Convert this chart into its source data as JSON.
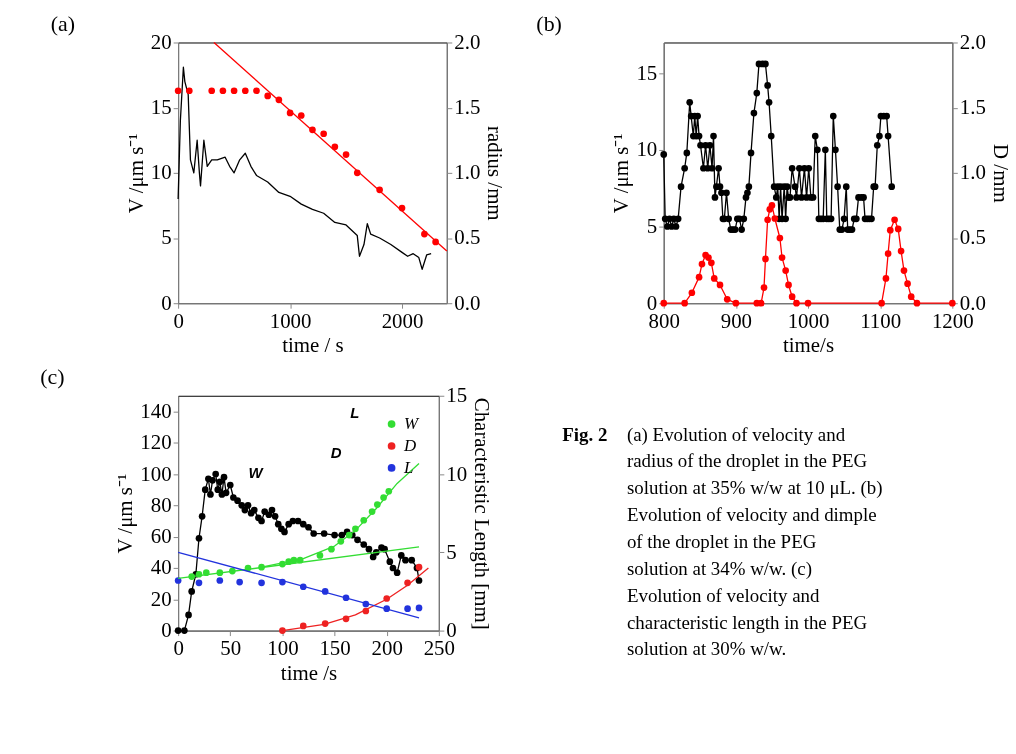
{
  "chart_data": [
    {
      "type": "line",
      "title": "(a)",
      "xlabel": "time / s",
      "ylabel": "V /μm s⁻¹",
      "y2label": "radius /mm",
      "xlim": [
        0,
        2400
      ],
      "xticks": [
        0,
        1000,
        2000
      ],
      "ylim": [
        0,
        20
      ],
      "yticks": [
        0,
        5,
        10,
        15,
        20
      ],
      "y2lim": [
        0,
        2.0
      ],
      "y2ticks": [
        {
          "value": 0,
          "label": "0.0"
        },
        {
          "value": 0.5,
          "label": "0.5"
        },
        {
          "value": 1,
          "label": "1.0"
        },
        {
          "value": 1.5,
          "label": "1.5"
        },
        {
          "value": 2,
          "label": "2.0"
        }
      ],
      "grid": false,
      "legend": false,
      "series": [
        {
          "type": "line",
          "color": "#000000",
          "x": [
            0,
            20,
            47,
            60,
            90,
            110,
            140,
            170,
            190,
            200,
            230,
            260,
            300,
            350,
            420,
            460,
            500,
            550,
            600,
            650,
            700,
            800,
            900,
            1000,
            1100,
            1200,
            1300,
            1400,
            1500,
            1600,
            1620,
            1660,
            1690,
            1720,
            1800,
            1900,
            2000,
            2050,
            2100,
            2150,
            2180,
            2220,
            2260
          ],
          "values": [
            8,
            14,
            18.1,
            17,
            16,
            11,
            10,
            12.5,
            10,
            9,
            12.5,
            10.5,
            11,
            11,
            11.2,
            10.5,
            10,
            11,
            11.5,
            10.5,
            9.8,
            9.3,
            8.5,
            8.2,
            7.6,
            7.2,
            6.9,
            6.2,
            6,
            5.2,
            3.6,
            4.5,
            6.1,
            5.3,
            5,
            4.5,
            3.9,
            3.6,
            3.8,
            3.5,
            2.6,
            3.7,
            3.8
          ]
        },
        {
          "type": "scatter",
          "axis": "y2",
          "marker": "circle",
          "color": "#ff0000",
          "x": [
            0,
            100,
            300,
            400,
            500,
            600,
            700,
            800,
            900,
            1000,
            1100,
            1200,
            1300,
            1400,
            1500,
            1600,
            1800,
            2000,
            2200,
            2300
          ],
          "values": [
            1.63,
            1.63,
            1.63,
            1.63,
            1.63,
            1.63,
            1.63,
            1.59,
            1.56,
            1.46,
            1.44,
            1.33,
            1.3,
            1.2,
            1.14,
            1,
            0.87,
            0.73,
            0.53,
            0.47
          ]
        },
        {
          "type": "line",
          "axis": "y2",
          "color": "#ff0000",
          "x": [
            320,
            2400
          ],
          "values": [
            2.0,
            0.4
          ]
        }
      ]
    },
    {
      "type": "line",
      "title": "(b)",
      "xlabel": "time/s",
      "ylabel": "V /μm s⁻¹",
      "y2label": "D /mm",
      "xlim": [
        800,
        1200
      ],
      "xticks": [
        800,
        900,
        1000,
        1100,
        1200
      ],
      "ylim": [
        0,
        17
      ],
      "yticks": [
        0,
        5,
        10,
        15
      ],
      "y2lim": [
        0,
        2.0
      ],
      "y2ticks": [
        {
          "value": 0,
          "label": "0.0"
        },
        {
          "value": 0.5,
          "label": "0.5"
        },
        {
          "value": 1,
          "label": "1.0"
        },
        {
          "value": 1.5,
          "label": "1.5"
        },
        {
          "value": 2,
          "label": "2.0"
        }
      ],
      "grid": false,
      "legend": false,
      "series": [
        {
          "type": "line",
          "marker": "circle",
          "color": "#000000",
          "x": [
            800,
            802,
            805,
            808,
            811,
            814,
            817,
            820,
            824,
            829,
            832,
            836,
            838,
            841,
            843,
            845,
            847,
            849,
            851,
            855,
            858,
            861,
            864,
            867,
            869,
            871,
            873,
            876,
            878,
            880,
            882,
            884,
            887,
            890,
            893,
            896,
            899,
            902,
            905,
            908,
            911,
            914,
            916,
            918,
            921,
            925,
            929,
            932,
            937,
            941,
            944,
            946,
            949,
            953,
            956,
            958,
            960,
            962,
            964,
            967,
            969,
            971,
            973,
            975,
            978,
            982,
            984,
            988,
            991,
            995,
            998,
            1001,
            1004,
            1007,
            1010,
            1013,
            1015,
            1018,
            1021,
            1024,
            1026,
            1029,
            1032,
            1035,
            1038,
            1041,
            1044,
            1047,
            1050,
            1053,
            1055,
            1058,
            1061,
            1064,
            1067,
            1070,
            1074,
            1077,
            1079,
            1082,
            1085,
            1088,
            1091,
            1093,
            1096,
            1099,
            1101,
            1105,
            1109,
            1111,
            1116
          ],
          "values": [
            9.7,
            5.5,
            5.0,
            5.5,
            5.0,
            5.5,
            5.0,
            5.5,
            7.6,
            8.8,
            9.8,
            13.1,
            12.2,
            10.9,
            12.2,
            10.9,
            12.2,
            10.9,
            10.3,
            8.8,
            10.3,
            8.8,
            10.3,
            8.8,
            10.9,
            6.9,
            7.6,
            8.8,
            7.6,
            7.2,
            5.5,
            5.5,
            7.2,
            5.5,
            4.8,
            4.8,
            4.8,
            5.5,
            5.5,
            4.8,
            5.5,
            6.9,
            7.2,
            7.6,
            9.8,
            12.4,
            13.7,
            15.6,
            15.6,
            15.6,
            14.2,
            13.1,
            10.9,
            7.6,
            6.9,
            7.6,
            5.5,
            7.6,
            5.5,
            7.6,
            5.5,
            7.6,
            6.9,
            6.9,
            8.8,
            7.6,
            6.9,
            8.8,
            6.9,
            8.8,
            6.9,
            8.8,
            6.9,
            6.9,
            10.9,
            10.0,
            5.5,
            5.5,
            5.5,
            10.0,
            5.5,
            5.5,
            5.5,
            12.2,
            10.0,
            7.6,
            4.8,
            4.8,
            5.5,
            7.6,
            4.8,
            4.8,
            4.8,
            5.5,
            5.5,
            6.9,
            6.9,
            6.9,
            5.5,
            5.5,
            5.5,
            5.5,
            7.6,
            7.6,
            10.3,
            10.9,
            12.2,
            12.2,
            12.2,
            10.9,
            7.6
          ]
        },
        {
          "type": "line",
          "axis": "y2",
          "marker": "circle",
          "color": "#ff0000",
          "x": [
            800,
            829,
            839,
            849,
            853,
            858,
            862,
            866,
            870,
            878,
            888,
            900,
            929,
            935,
            939,
            941,
            944,
            947,
            950,
            954,
            961,
            964,
            969,
            973,
            978,
            984,
            1000,
            1102,
            1108,
            1111,
            1114,
            1120,
            1125,
            1129,
            1133,
            1138,
            1143,
            1151,
            1200
          ],
          "values": [
            0,
            0,
            0.08,
            0.2,
            0.3,
            0.37,
            0.35,
            0.31,
            0.19,
            0.14,
            0.03,
            0,
            0,
            0,
            0.12,
            0.34,
            0.64,
            0.72,
            0.75,
            0.65,
            0.5,
            0.35,
            0.25,
            0.14,
            0.05,
            0,
            0,
            0,
            0.19,
            0.38,
            0.56,
            0.64,
            0.57,
            0.4,
            0.25,
            0.15,
            0.05,
            0,
            0
          ]
        }
      ]
    },
    {
      "type": "line",
      "title": "(c)",
      "xlabel": "time /s",
      "ylabel": "V /μm s⁻¹",
      "y2label": "Characteristic Length  [mm]",
      "xlim": [
        0,
        250
      ],
      "xticks": [
        0,
        50,
        100,
        150,
        200,
        250
      ],
      "ylim": [
        0,
        150
      ],
      "yticks": [
        0,
        20,
        40,
        60,
        80,
        100,
        120,
        140
      ],
      "y2lim": [
        0,
        15
      ],
      "y2ticks": [
        0,
        5,
        10,
        15
      ],
      "grid": false,
      "legend": "top right",
      "annotations": [
        "L",
        "D",
        "W"
      ],
      "series": [
        {
          "type": "scatter",
          "axis": "y2",
          "name": "W",
          "marker": "circle",
          "color": "#33dd33",
          "x": [
            13,
            20,
            27,
            40,
            52,
            67,
            80,
            100,
            106,
            111,
            117,
            136,
            147,
            156,
            164,
            170,
            178,
            186,
            191,
            197,
            202
          ],
          "values": [
            3.45,
            3.6,
            3.7,
            3.7,
            3.8,
            4,
            4.05,
            4.25,
            4.4,
            4.5,
            4.5,
            4.8,
            5.2,
            5.7,
            6.1,
            6.5,
            7.05,
            7.6,
            8.05,
            8.5,
            8.9
          ]
        },
        {
          "type": "scatter",
          "axis": "y2",
          "name": "D",
          "marker": "circle",
          "color": "#ee2222",
          "x": [
            100,
            120,
            141,
            161,
            180,
            200,
            220,
            231
          ],
          "values": [
            0,
            0.3,
            0.45,
            0.75,
            1.25,
            2.05,
            3.05,
            4.05
          ]
        },
        {
          "type": "scatter",
          "axis": "y2",
          "name": "L",
          "marker": "circle",
          "color": "#2233dd",
          "x": [
            0,
            20,
            40,
            59,
            80,
            100,
            120,
            141,
            161,
            180,
            200,
            220,
            231
          ],
          "values": [
            3.2,
            3.05,
            3.2,
            3.1,
            3.05,
            3.1,
            2.8,
            2.5,
            2.1,
            1.7,
            1.4,
            1.4,
            1.45
          ]
        },
        {
          "type": "line",
          "axis": "y2",
          "color": "#33dd33",
          "x": [
            0,
            231
          ],
          "values": [
            3.33,
            5.35
          ]
        },
        {
          "type": "line",
          "axis": "y2",
          "color": "#33dd33",
          "x": [
            80,
            120,
            150,
            170,
            190,
            210,
            231
          ],
          "values": [
            4.05,
            4.6,
            5.4,
            6.4,
            7.8,
            9.4,
            10.67
          ]
        },
        {
          "type": "line",
          "axis": "y2",
          "color": "#ee2222",
          "x": [
            100,
            140,
            170,
            200,
            220,
            240
          ],
          "values": [
            0,
            0.4,
            1,
            2,
            2.9,
            4
          ]
        },
        {
          "type": "line",
          "axis": "y2",
          "color": "#2233dd",
          "x": [
            0,
            231
          ],
          "values": [
            5,
            0.82
          ]
        },
        {
          "type": "line",
          "marker": "circle",
          "color": "#000000",
          "x": [
            0,
            6,
            10,
            13,
            17,
            20,
            23,
            26,
            29,
            31,
            33,
            36,
            38,
            40,
            42,
            44,
            46,
            50,
            53,
            57,
            61,
            64,
            67,
            70,
            73,
            77,
            80,
            83,
            87,
            90,
            93,
            96,
            99,
            102,
            106,
            110,
            115,
            120,
            125,
            130,
            140,
            150,
            157,
            162,
            167,
            172,
            178,
            183,
            187,
            190,
            195,
            198,
            203,
            206,
            210,
            214,
            218,
            224,
            229,
            231
          ],
          "values": [
            0,
            0,
            10,
            25,
            36,
            59,
            73,
            90,
            97,
            87,
            96,
            100,
            90,
            95,
            87,
            98,
            88,
            93,
            85,
            83,
            80,
            77,
            80,
            75,
            77,
            72,
            70,
            76,
            74,
            77,
            73,
            68,
            65,
            63,
            68,
            70,
            70,
            68,
            66,
            62,
            62,
            61,
            61,
            63,
            61,
            58,
            55,
            52,
            47,
            50,
            53,
            52,
            44,
            40,
            37,
            48,
            45,
            45,
            40,
            32
          ]
        }
      ]
    },
    {
      "type": "other",
      "title": "Fig. 2",
      "annotations": [
        "(a) Evolution of velocity and radius of the droplet in the PEG solution at 35% w/w at 10 μL.",
        "(b) Evolution of velocity and dimple of the droplet in the PEG solution at 34% w/w.",
        "(c) Evolution of velocity and characteristic length in the PEG solution at 30% w/w."
      ]
    }
  ]
}
